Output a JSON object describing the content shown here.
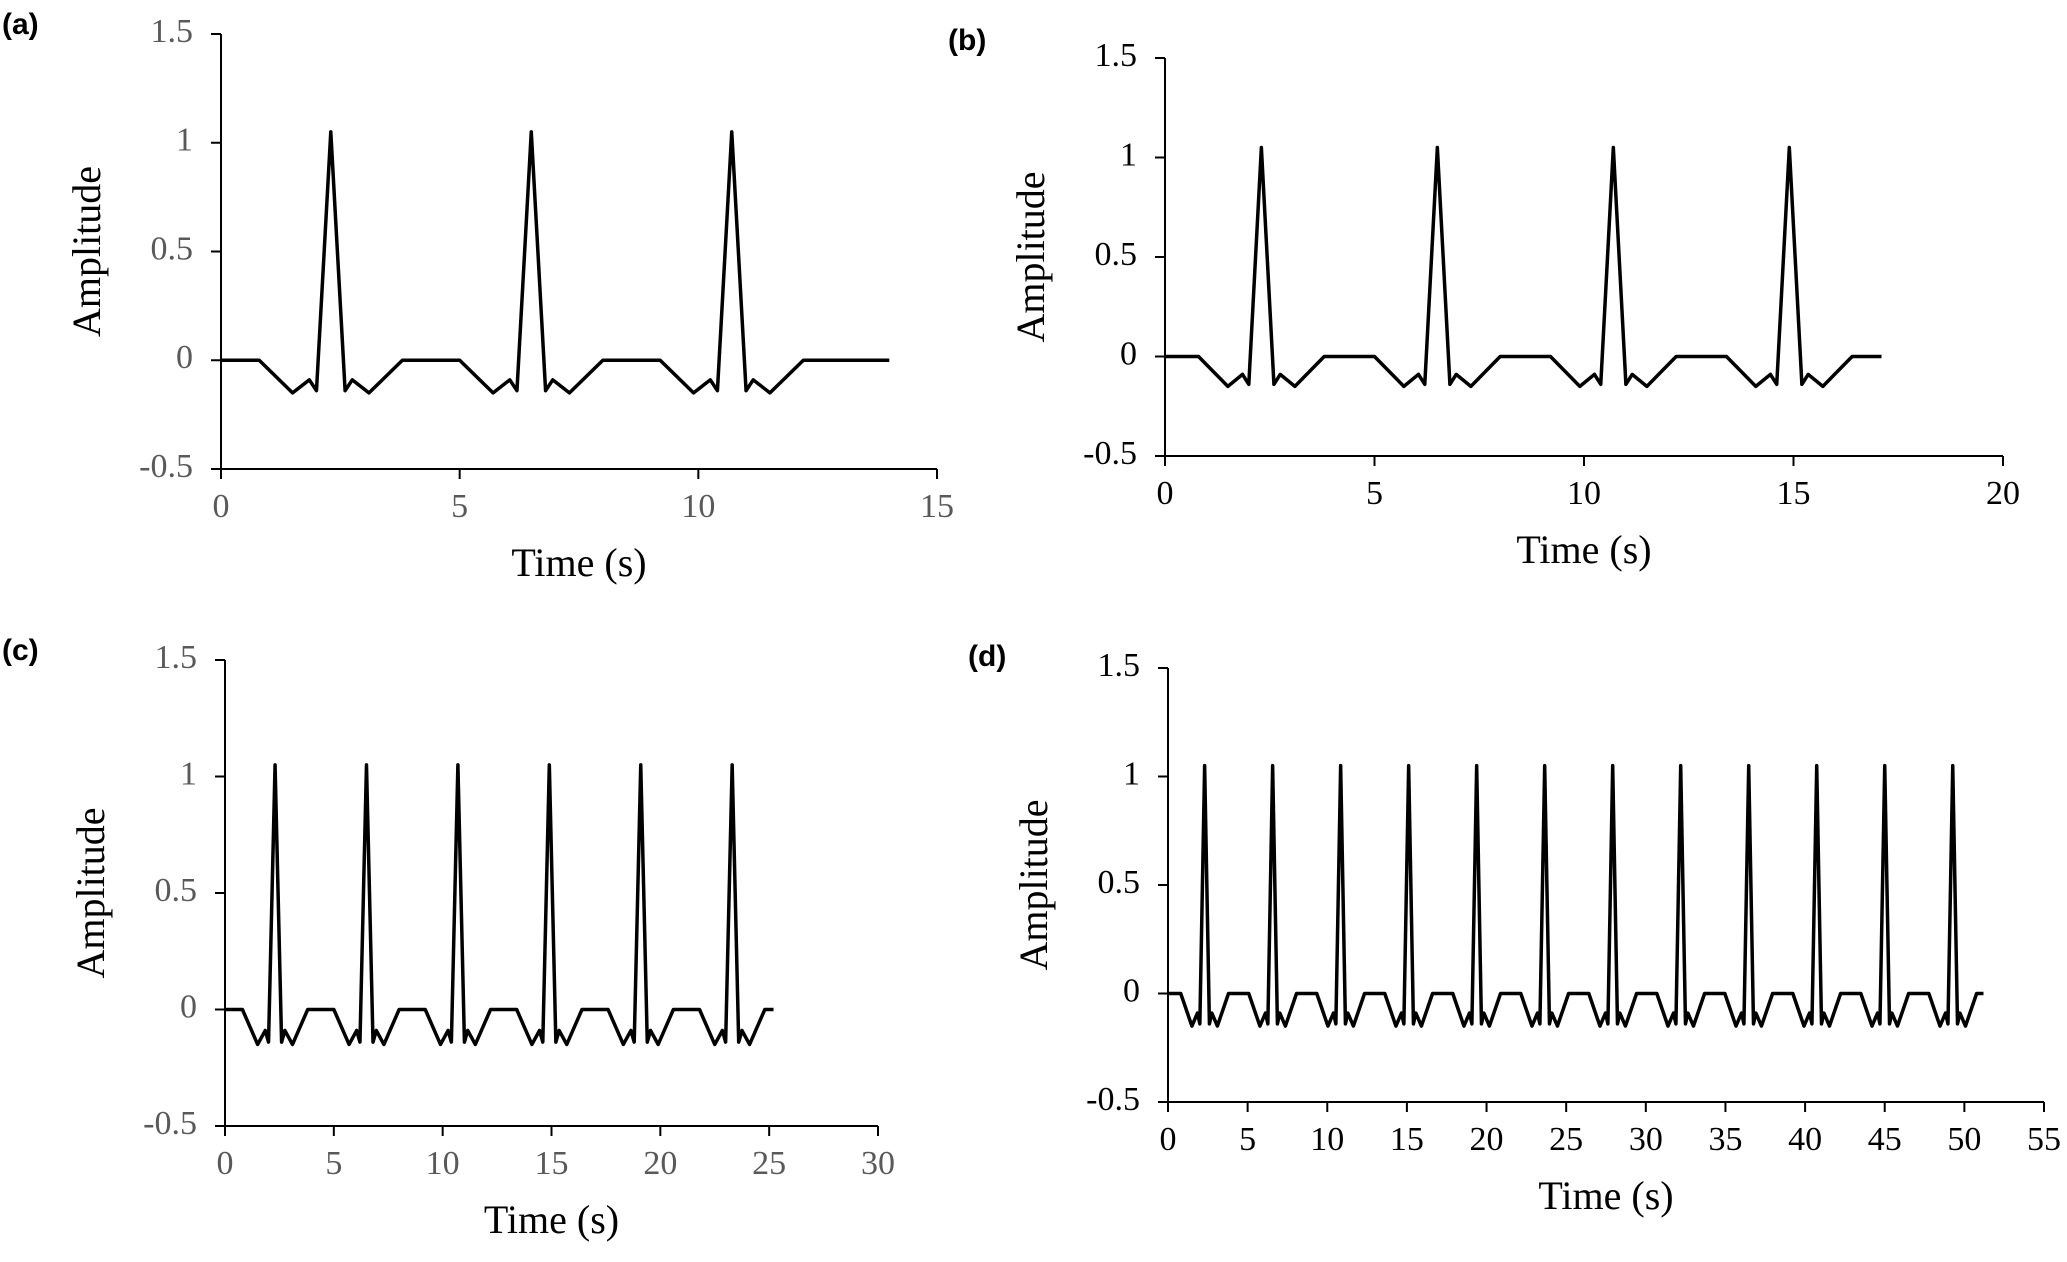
{
  "chart_data": [
    {
      "type": "line",
      "label": "(a)",
      "xlabel": "Time (s)",
      "ylabel": "Amplitude",
      "color": "#000000",
      "tick_color": "#595959",
      "xlim": [
        0,
        15
      ],
      "xticks": [
        0,
        5,
        10,
        15
      ],
      "ylim": [
        -0.5,
        1.5
      ],
      "yticks": [
        -0.5,
        0,
        0.5,
        1,
        1.5
      ],
      "x": [
        0,
        0.8,
        1.5,
        1.85,
        2,
        2.3,
        2.6,
        2.75,
        3.1,
        3.8,
        5,
        5.7,
        6.05,
        6.2,
        6.5,
        6.8,
        6.95,
        7.3,
        8,
        9.2,
        9.9,
        10.25,
        10.4,
        10.7,
        11,
        11.15,
        11.5,
        12.2,
        14
      ],
      "values": [
        0,
        0,
        -0.15,
        -0.09,
        -0.14,
        1.05,
        -0.14,
        -0.09,
        -0.15,
        0,
        0,
        -0.15,
        -0.09,
        -0.14,
        1.05,
        -0.14,
        -0.09,
        -0.15,
        0,
        0,
        -0.15,
        -0.09,
        -0.14,
        1.05,
        -0.14,
        -0.09,
        -0.15,
        0,
        0
      ]
    },
    {
      "type": "line",
      "label": "(b)",
      "xlabel": "Time (s)",
      "ylabel": "Amplitude",
      "color": "#000000",
      "tick_color": "#000000",
      "xlim": [
        0,
        20
      ],
      "xticks": [
        0,
        5,
        10,
        15,
        20
      ],
      "ylim": [
        -0.5,
        1.5
      ],
      "yticks": [
        -0.5,
        0,
        0.5,
        1,
        1.5
      ],
      "x": [
        0,
        0.8,
        1.5,
        1.85,
        2,
        2.3,
        2.6,
        2.75,
        3.1,
        3.8,
        5,
        5.7,
        6.05,
        6.2,
        6.5,
        6.8,
        6.95,
        7.3,
        8,
        9.2,
        9.9,
        10.25,
        10.4,
        10.7,
        11,
        11.15,
        11.5,
        12.2,
        13.4,
        14.1,
        14.45,
        14.6,
        14.9,
        15.2,
        15.35,
        15.7,
        16.4,
        17.1
      ],
      "values": [
        0,
        0,
        -0.15,
        -0.09,
        -0.14,
        1.05,
        -0.14,
        -0.09,
        -0.15,
        0,
        0,
        -0.15,
        -0.09,
        -0.14,
        1.05,
        -0.14,
        -0.09,
        -0.15,
        0,
        0,
        -0.15,
        -0.09,
        -0.14,
        1.05,
        -0.14,
        -0.09,
        -0.15,
        0,
        0,
        -0.15,
        -0.09,
        -0.14,
        1.05,
        -0.14,
        -0.09,
        -0.15,
        0,
        0
      ]
    },
    {
      "type": "line",
      "label": "(c)",
      "xlabel": "Time (s)",
      "ylabel": "Amplitude",
      "color": "#000000",
      "tick_color": "#595959",
      "xlim": [
        0,
        30
      ],
      "xticks": [
        0,
        5,
        10,
        15,
        20,
        25,
        30
      ],
      "ylim": [
        -0.5,
        1.5
      ],
      "yticks": [
        -0.5,
        0,
        0.5,
        1,
        1.5
      ],
      "x": [
        0,
        0.8,
        1.5,
        1.85,
        2,
        2.3,
        2.6,
        2.75,
        3.1,
        3.8,
        5,
        5.7,
        6.05,
        6.2,
        6.5,
        6.8,
        6.95,
        7.3,
        8,
        9.2,
        9.9,
        10.25,
        10.4,
        10.7,
        11,
        11.15,
        11.5,
        12.2,
        13.4,
        14.1,
        14.45,
        14.6,
        14.9,
        15.2,
        15.35,
        15.7,
        16.4,
        17.6,
        18.3,
        18.65,
        18.8,
        19.1,
        19.4,
        19.55,
        19.9,
        20.6,
        21.8,
        22.5,
        22.85,
        23,
        23.3,
        23.6,
        23.75,
        24.1,
        24.8,
        25.2
      ],
      "values": [
        0,
        0,
        -0.15,
        -0.09,
        -0.14,
        1.05,
        -0.14,
        -0.09,
        -0.15,
        0,
        0,
        -0.15,
        -0.09,
        -0.14,
        1.05,
        -0.14,
        -0.09,
        -0.15,
        0,
        0,
        -0.15,
        -0.09,
        -0.14,
        1.05,
        -0.14,
        -0.09,
        -0.15,
        0,
        0,
        -0.15,
        -0.09,
        -0.14,
        1.05,
        -0.14,
        -0.09,
        -0.15,
        0,
        0,
        -0.15,
        -0.09,
        -0.14,
        1.05,
        -0.14,
        -0.09,
        -0.15,
        0,
        0,
        -0.15,
        -0.09,
        -0.14,
        1.05,
        -0.14,
        -0.09,
        -0.15,
        0,
        0
      ]
    },
    {
      "type": "line",
      "label": "(d)",
      "xlabel": "Time (s)",
      "ylabel": "Amplitude",
      "color": "#000000",
      "tick_color": "#000000",
      "xlim": [
        0,
        55
      ],
      "xticks": [
        0,
        5,
        10,
        15,
        20,
        25,
        30,
        35,
        40,
        45,
        50,
        55
      ],
      "ylim": [
        -0.5,
        1.5
      ],
      "yticks": [
        -0.5,
        0,
        0.5,
        1,
        1.5
      ],
      "x": [
        0,
        0.8,
        1.5,
        1.85,
        2,
        2.3,
        2.6,
        2.75,
        3.1,
        3.8,
        5.07,
        5.77,
        6.12,
        6.27,
        6.57,
        6.87,
        7.02,
        7.37,
        8.07,
        9.34,
        10.04,
        10.39,
        10.54,
        10.84,
        11.14,
        11.29,
        11.64,
        12.34,
        13.61,
        14.31,
        14.66,
        14.81,
        15.11,
        15.41,
        15.56,
        15.91,
        16.61,
        17.88,
        18.58,
        18.93,
        19.08,
        19.38,
        19.68,
        19.83,
        20.18,
        20.88,
        22.15,
        22.85,
        23.2,
        23.35,
        23.65,
        23.95,
        24.1,
        24.45,
        25.15,
        26.42,
        27.12,
        27.47,
        27.62,
        27.92,
        28.22,
        28.37,
        28.72,
        29.42,
        30.69,
        31.39,
        31.74,
        31.89,
        32.19,
        32.49,
        32.64,
        32.99,
        33.69,
        34.96,
        35.66,
        36.01,
        36.16,
        36.46,
        36.76,
        36.91,
        37.26,
        37.96,
        39.23,
        39.93,
        40.28,
        40.43,
        40.73,
        41.03,
        41.18,
        41.53,
        42.23,
        43.5,
        44.2,
        44.55,
        44.7,
        45,
        45.3,
        45.45,
        45.8,
        46.5,
        47.77,
        48.47,
        48.82,
        48.97,
        49.27,
        49.57,
        49.72,
        50.07,
        50.77,
        51.2
      ],
      "values": [
        0,
        0,
        -0.15,
        -0.09,
        -0.14,
        1.05,
        -0.14,
        -0.09,
        -0.15,
        0,
        0,
        -0.15,
        -0.09,
        -0.14,
        1.05,
        -0.14,
        -0.09,
        -0.15,
        0,
        0,
        -0.15,
        -0.09,
        -0.14,
        1.05,
        -0.14,
        -0.09,
        -0.15,
        0,
        0,
        -0.15,
        -0.09,
        -0.14,
        1.05,
        -0.14,
        -0.09,
        -0.15,
        0,
        0,
        -0.15,
        -0.09,
        -0.14,
        1.05,
        -0.14,
        -0.09,
        -0.15,
        0,
        0,
        -0.15,
        -0.09,
        -0.14,
        1.05,
        -0.14,
        -0.09,
        -0.15,
        0,
        0,
        -0.15,
        -0.09,
        -0.14,
        1.05,
        -0.14,
        -0.09,
        -0.15,
        0,
        0,
        -0.15,
        -0.09,
        -0.14,
        1.05,
        -0.14,
        -0.09,
        -0.15,
        0,
        0,
        -0.15,
        -0.09,
        -0.14,
        1.05,
        -0.14,
        -0.09,
        -0.15,
        0,
        0,
        -0.15,
        -0.09,
        -0.14,
        1.05,
        -0.14,
        -0.09,
        -0.15,
        0,
        0,
        -0.15,
        -0.09,
        -0.14,
        1.05,
        -0.14,
        -0.09,
        -0.15,
        0,
        0,
        -0.15,
        -0.09,
        -0.14,
        1.05,
        -0.14,
        -0.09,
        -0.15,
        0,
        0
      ]
    }
  ]
}
